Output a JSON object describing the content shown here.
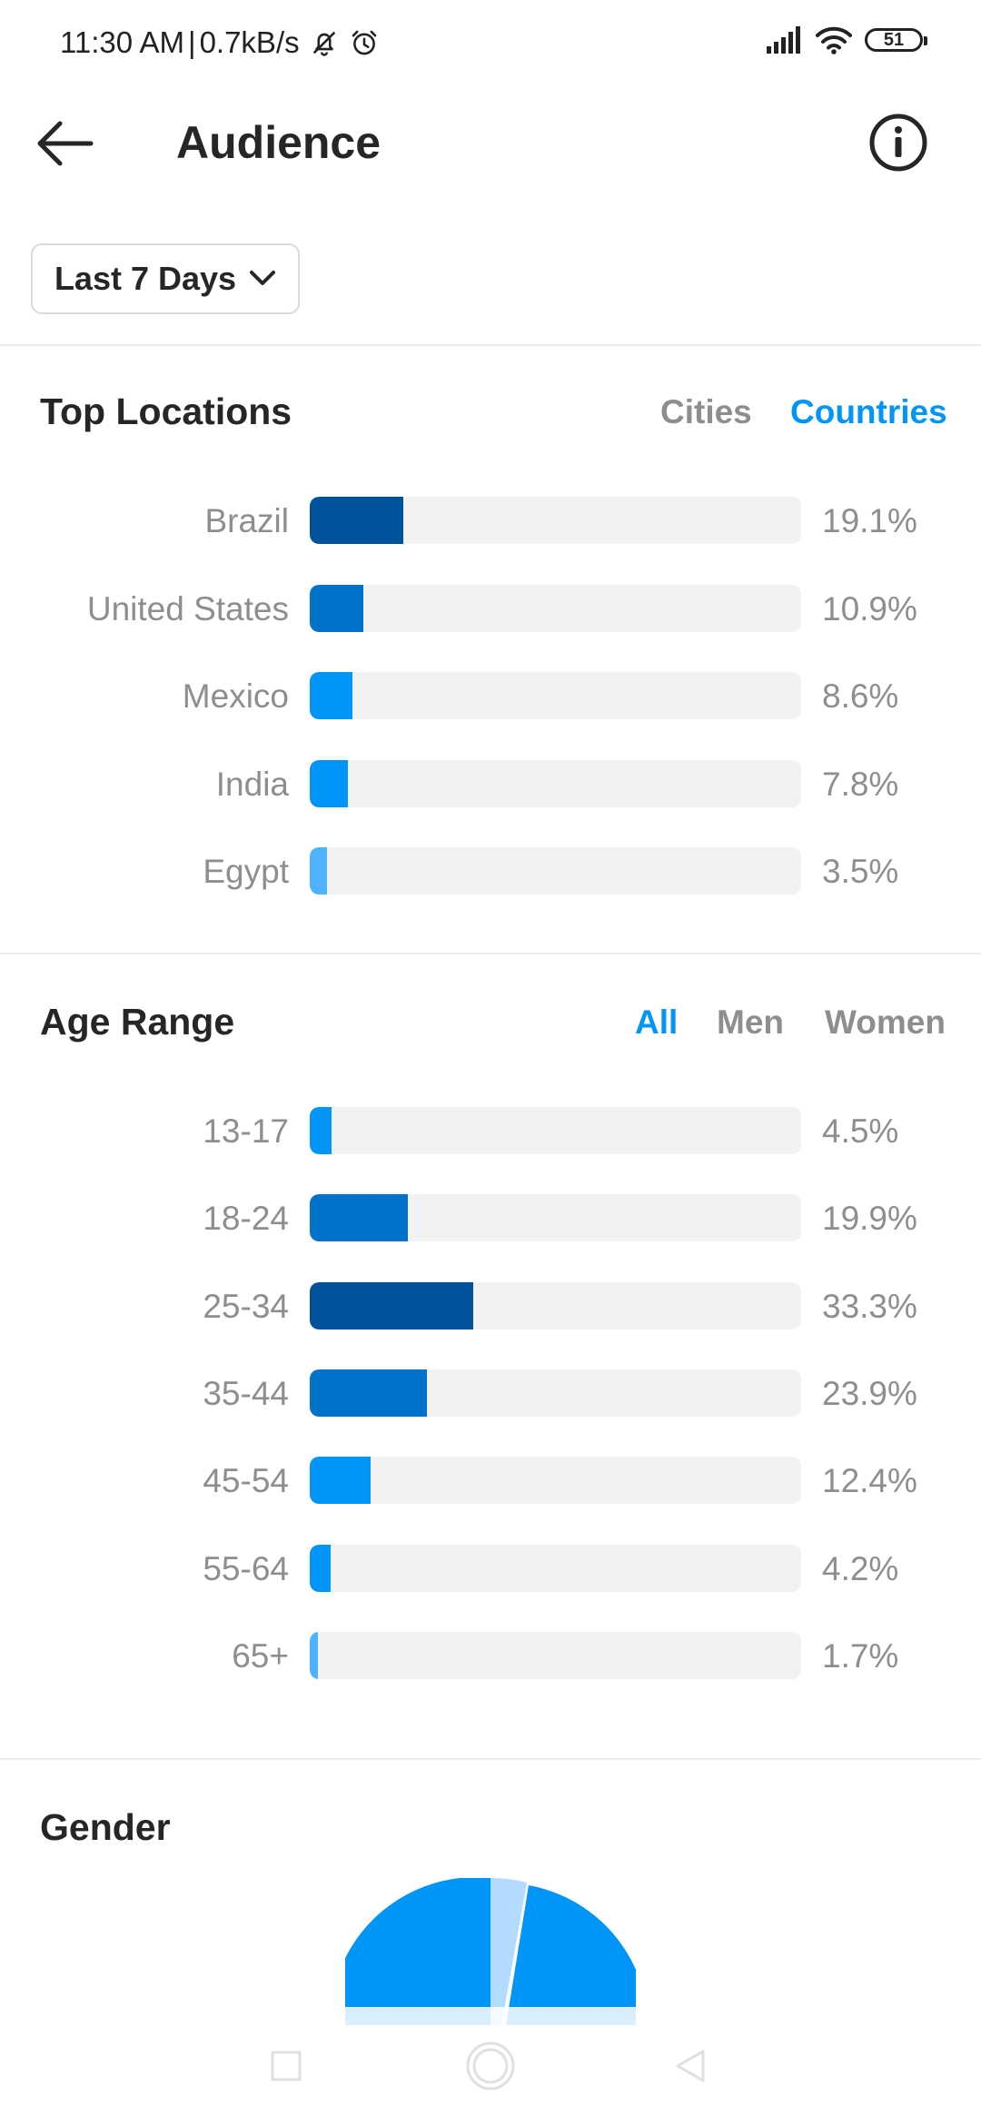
{
  "status_bar": {
    "time": "11:30 AM",
    "separator": "|",
    "speed": "0.7kB/s",
    "battery": "51"
  },
  "header": {
    "title": "Audience"
  },
  "filter": {
    "label": "Last 7 Days"
  },
  "locations": {
    "title": "Top Locations",
    "tabs": [
      "Cities",
      "Countries"
    ],
    "active_tab": "Countries",
    "rows": [
      {
        "label": "Brazil",
        "value": "19.1%",
        "percent": 19.1,
        "color": "#00529b"
      },
      {
        "label": "United States",
        "value": "10.9%",
        "percent": 10.9,
        "color": "#0072c9"
      },
      {
        "label": "Mexico",
        "value": "8.6%",
        "percent": 8.6,
        "color": "#0095f6"
      },
      {
        "label": "India",
        "value": "7.8%",
        "percent": 7.8,
        "color": "#0095f6"
      },
      {
        "label": "Egypt",
        "value": "3.5%",
        "percent": 3.5,
        "color": "#4db3ff"
      }
    ]
  },
  "age": {
    "title": "Age Range",
    "tabs": [
      "All",
      "Men",
      "Women"
    ],
    "active_tab": "All",
    "rows": [
      {
        "label": "13-17",
        "value": "4.5%",
        "percent": 4.5,
        "color": "#0095f6"
      },
      {
        "label": "18-24",
        "value": "19.9%",
        "percent": 19.9,
        "color": "#0072c9"
      },
      {
        "label": "25-34",
        "value": "33.3%",
        "percent": 33.3,
        "color": "#00529b"
      },
      {
        "label": "35-44",
        "value": "23.9%",
        "percent": 23.9,
        "color": "#0072c9"
      },
      {
        "label": "45-54",
        "value": "12.4%",
        "percent": 12.4,
        "color": "#0095f6"
      },
      {
        "label": "55-64",
        "value": "4.2%",
        "percent": 4.2,
        "color": "#0095f6"
      },
      {
        "label": "65+",
        "value": "1.7%",
        "percent": 1.7,
        "color": "#4db3ff"
      }
    ]
  },
  "gender": {
    "title": "Gender",
    "colors": {
      "main": "#0095f6",
      "light": "#b3dbff"
    }
  },
  "colors": {
    "accent": "#0095f6",
    "text": "#262626",
    "muted": "#8e8e8e",
    "track": "#f2f2f2"
  }
}
